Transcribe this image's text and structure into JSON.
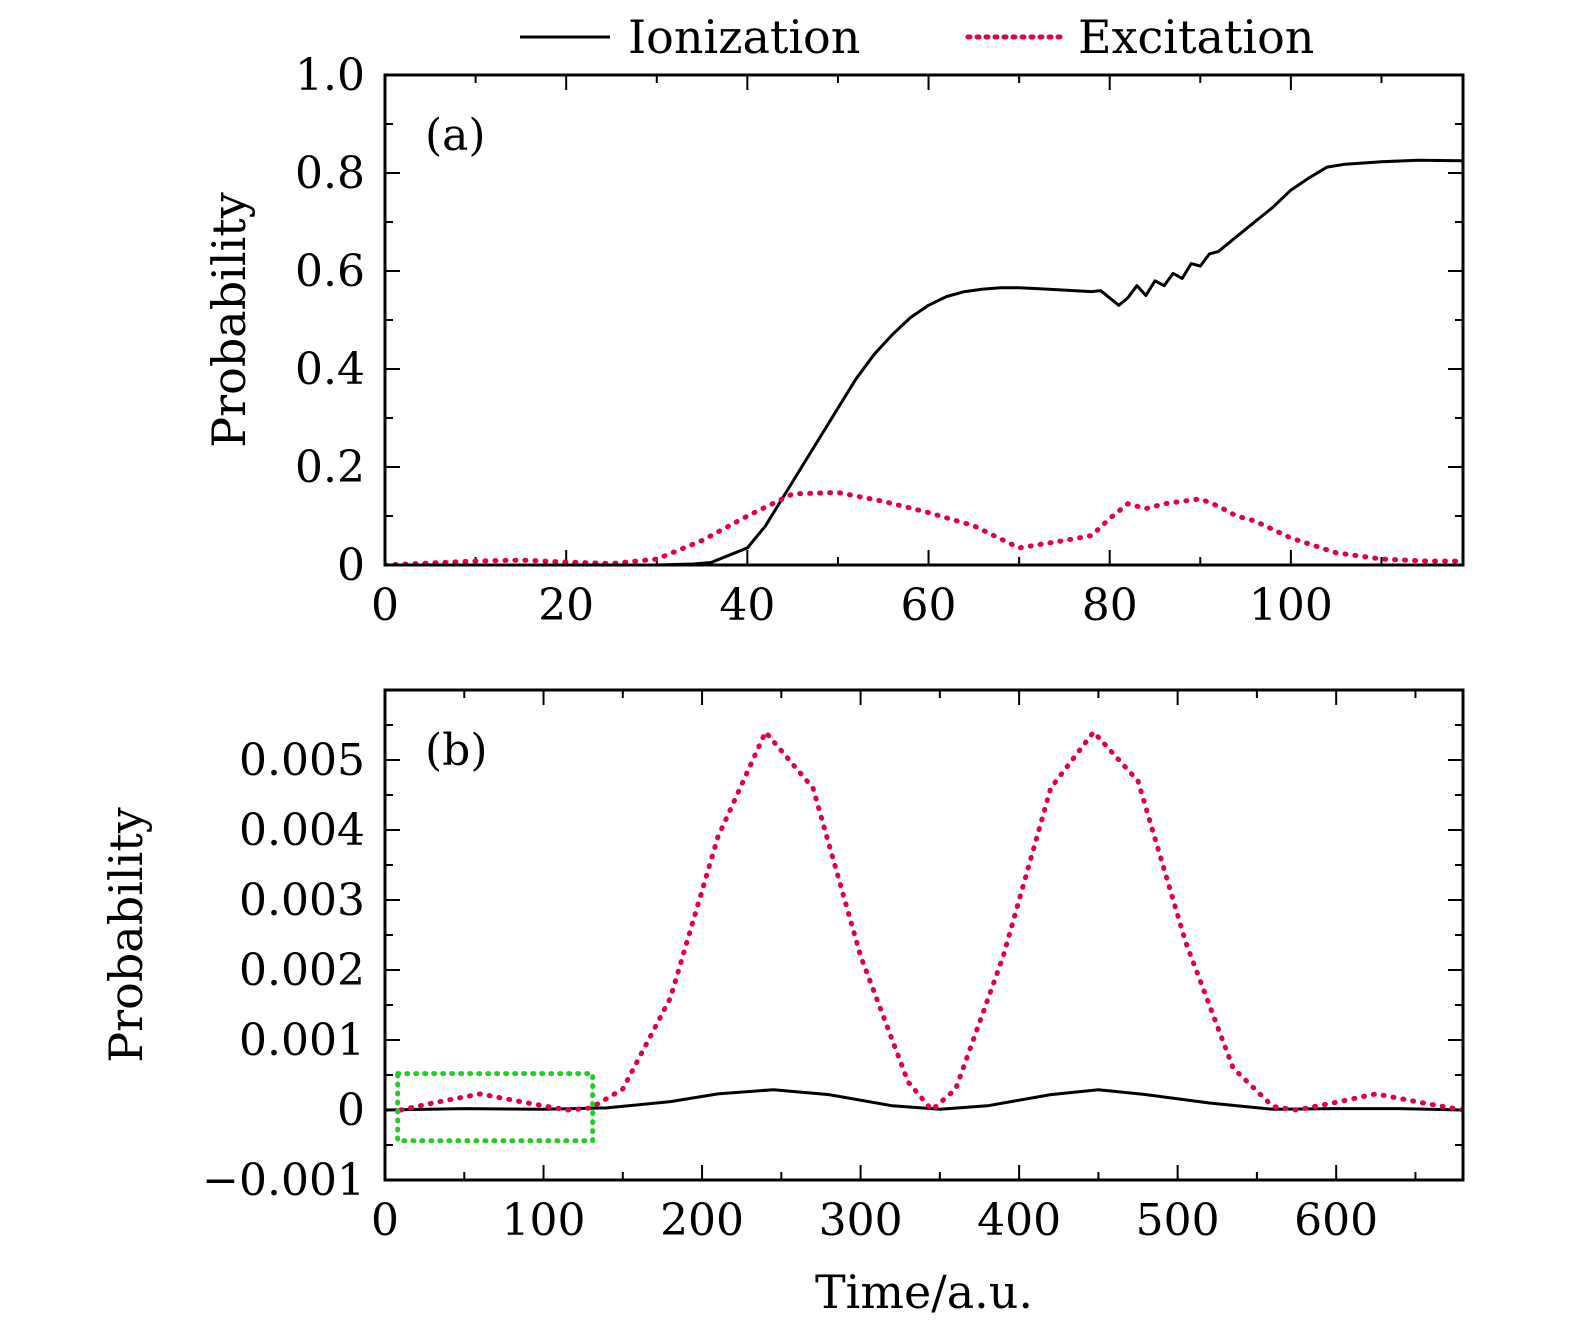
{
  "legend": {
    "entries": [
      {
        "label": "Ionization",
        "style": "solid",
        "color": "#000000"
      },
      {
        "label": "Excitation",
        "style": "dotted",
        "color": "#e0004a"
      }
    ]
  },
  "chart_data": [
    {
      "type": "line",
      "panel_label": "(a)",
      "xlabel": "",
      "ylabel": "Probability",
      "xlim": [
        0,
        119
      ],
      "ylim": [
        0,
        1.0
      ],
      "x_ticks": [
        0,
        20,
        40,
        60,
        80,
        100
      ],
      "x_tick_labels": [
        "0",
        "20",
        "40",
        "60",
        "80",
        "100"
      ],
      "y_ticks": [
        0,
        0.2,
        0.4,
        0.6,
        0.8,
        1.0
      ],
      "y_tick_labels": [
        "0",
        "0.2",
        "0.4",
        "0.6",
        "0.8",
        "1.0"
      ],
      "series": [
        {
          "name": "Ionization",
          "x": [
            0,
            10,
            20,
            30,
            34,
            36,
            38,
            40,
            42,
            44,
            46,
            48,
            50,
            52,
            54,
            56,
            58,
            60,
            62,
            64,
            66,
            68,
            70,
            72,
            74,
            76,
            78,
            79,
            80,
            81,
            82,
            83,
            84,
            85,
            86,
            87,
            88,
            89,
            90,
            91,
            92,
            94,
            96,
            98,
            100,
            102,
            104,
            106,
            110,
            114,
            119
          ],
          "y": [
            0,
            0,
            0,
            0,
            0.002,
            0.005,
            0.02,
            0.035,
            0.08,
            0.14,
            0.2,
            0.26,
            0.32,
            0.38,
            0.43,
            0.47,
            0.505,
            0.53,
            0.548,
            0.558,
            0.563,
            0.566,
            0.566,
            0.564,
            0.562,
            0.56,
            0.558,
            0.56,
            0.545,
            0.53,
            0.545,
            0.57,
            0.55,
            0.58,
            0.57,
            0.595,
            0.585,
            0.615,
            0.61,
            0.635,
            0.64,
            0.67,
            0.7,
            0.73,
            0.765,
            0.79,
            0.812,
            0.818,
            0.823,
            0.826,
            0.825
          ]
        },
        {
          "name": "Excitation",
          "x": [
            0,
            5,
            10,
            15,
            20,
            25,
            30,
            35,
            40,
            45,
            50,
            55,
            60,
            65,
            70,
            75,
            78,
            80,
            82,
            84,
            86,
            88,
            90,
            92,
            94,
            96,
            100,
            105,
            110,
            115,
            119
          ],
          "y": [
            0,
            0.004,
            0.008,
            0.01,
            0.006,
            0.003,
            0.012,
            0.05,
            0.1,
            0.145,
            0.148,
            0.13,
            0.107,
            0.08,
            0.035,
            0.05,
            0.06,
            0.095,
            0.125,
            0.115,
            0.125,
            0.13,
            0.135,
            0.12,
            0.1,
            0.09,
            0.055,
            0.025,
            0.012,
            0.008,
            0.008
          ]
        }
      ]
    },
    {
      "type": "line",
      "panel_label": "(b)",
      "xlabel": "Time/a.u.",
      "ylabel": "Probability",
      "xlim": [
        0,
        680
      ],
      "ylim": [
        -0.001,
        0.006
      ],
      "x_ticks": [
        0,
        100,
        200,
        300,
        400,
        500,
        600
      ],
      "x_tick_labels": [
        "0",
        "100",
        "200",
        "300",
        "400",
        "500",
        "600"
      ],
      "y_ticks": [
        -0.001,
        0,
        0.001,
        0.002,
        0.003,
        0.004,
        0.005
      ],
      "y_tick_labels": [
        "−0.001",
        "0",
        "0.001",
        "0.002",
        "0.003",
        "0.004",
        "0.005"
      ],
      "series": [
        {
          "name": "Ionization",
          "x": [
            0,
            50,
            100,
            140,
            180,
            210,
            245,
            280,
            320,
            350,
            380,
            420,
            450,
            480,
            520,
            560,
            600,
            640,
            680
          ],
          "y": [
            0,
            2e-05,
            1e-05,
            3e-05,
            0.00012,
            0.00023,
            0.00029,
            0.00022,
            6e-05,
            1e-05,
            6e-05,
            0.00022,
            0.00029,
            0.00022,
            0.0001,
            1e-05,
            2e-05,
            2e-05,
            0
          ]
        },
        {
          "name": "Excitation",
          "x": [
            10,
            30,
            60,
            90,
            115,
            130,
            150,
            180,
            210,
            240,
            270,
            300,
            330,
            345,
            360,
            390,
            420,
            447,
            475,
            505,
            535,
            560,
            575,
            600,
            625,
            655,
            680
          ],
          "y": [
            0,
            0.0001,
            0.00023,
            0.0001,
            0,
            3e-05,
            0.0003,
            0.0016,
            0.0039,
            0.0054,
            0.0046,
            0.0022,
            0.0004,
            0,
            0.0003,
            0.0022,
            0.0046,
            0.0054,
            0.0047,
            0.0024,
            0.0006,
            5e-05,
            0,
            0.00011,
            0.00023,
            0.0001,
            0
          ]
        }
      ],
      "highlight_box": {
        "x0": 8,
        "x1": 131,
        "y0": -0.00044,
        "y1": 0.00052,
        "color": "#22cc22"
      }
    }
  ]
}
